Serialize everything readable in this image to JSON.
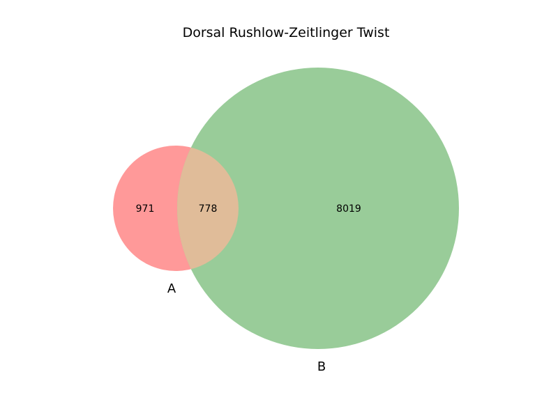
{
  "chart_data": {
    "type": "venn",
    "title": "Dorsal Rushlow-Zeitlinger Twist",
    "sets": [
      {
        "name": "A",
        "only": 971,
        "color": "#ff9999"
      },
      {
        "name": "B",
        "only": 8019,
        "color": "#99cc99"
      }
    ],
    "intersection": {
      "sets": [
        "A",
        "B"
      ],
      "value": 778,
      "color": "#e0bc99"
    }
  }
}
